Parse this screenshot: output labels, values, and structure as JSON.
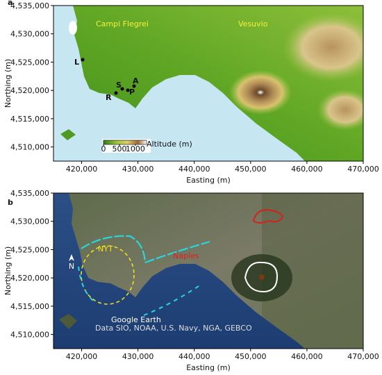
{
  "panels": [
    {
      "label": "a",
      "xlabel": "Easting (m)",
      "ylabel": "Northing (m)",
      "xlim": [
        415000,
        470000
      ],
      "ylim": [
        4507500,
        4535000
      ],
      "xticks": [
        {
          "value": 420000,
          "label": "420,000"
        },
        {
          "value": 430000,
          "label": "430,000"
        },
        {
          "value": 440000,
          "label": "440,000"
        },
        {
          "value": 450000,
          "label": "450,000"
        },
        {
          "value": 460000,
          "label": "460,000"
        },
        {
          "value": 470000,
          "label": "470,000"
        }
      ],
      "yticks": [
        {
          "value": 4510000,
          "label": "4,510,000"
        },
        {
          "value": 4515000,
          "label": "4,515,000"
        },
        {
          "value": 4520000,
          "label": "4,520,000"
        },
        {
          "value": 4525000,
          "label": "4,525,000"
        },
        {
          "value": 4530000,
          "label": "4,530,000"
        },
        {
          "value": 4535000,
          "label": "4,535,000"
        }
      ],
      "annotations": {
        "campi": "Campi Flegrei",
        "vesuvio": "Vesuvio",
        "sites": [
          "L",
          "R",
          "S",
          "P",
          "A"
        ]
      },
      "colorbar": {
        "title": "Altitude (m)",
        "lim": [
          0,
          1350
        ],
        "ticks": [
          0,
          500,
          1000
        ]
      }
    },
    {
      "label": "b",
      "xlabel": "Easting (m)",
      "ylabel": "Northing (m)",
      "xlim": [
        415000,
        470000
      ],
      "ylim": [
        4507500,
        4535000
      ],
      "xticks": [
        {
          "value": 420000,
          "label": "420,000"
        },
        {
          "value": 430000,
          "label": "430,000"
        },
        {
          "value": 440000,
          "label": "440,000"
        },
        {
          "value": 450000,
          "label": "450,000"
        },
        {
          "value": 460000,
          "label": "460,000"
        },
        {
          "value": 470000,
          "label": "470,000"
        }
      ],
      "yticks": [
        {
          "value": 4510000,
          "label": "4,510,000"
        },
        {
          "value": 4515000,
          "label": "4,515,000"
        },
        {
          "value": 4520000,
          "label": "4,520,000"
        },
        {
          "value": 4525000,
          "label": "4,525,000"
        },
        {
          "value": 4530000,
          "label": "4,530,000"
        },
        {
          "value": 4535000,
          "label": "4,535,000"
        }
      ],
      "annotations": {
        "nyt": "NYT",
        "naples": "Naples",
        "north": "N",
        "google": "Google Earth",
        "credits": "Data SIO, NOAA, U.S. Navy, NGA, GEBCO"
      }
    }
  ]
}
